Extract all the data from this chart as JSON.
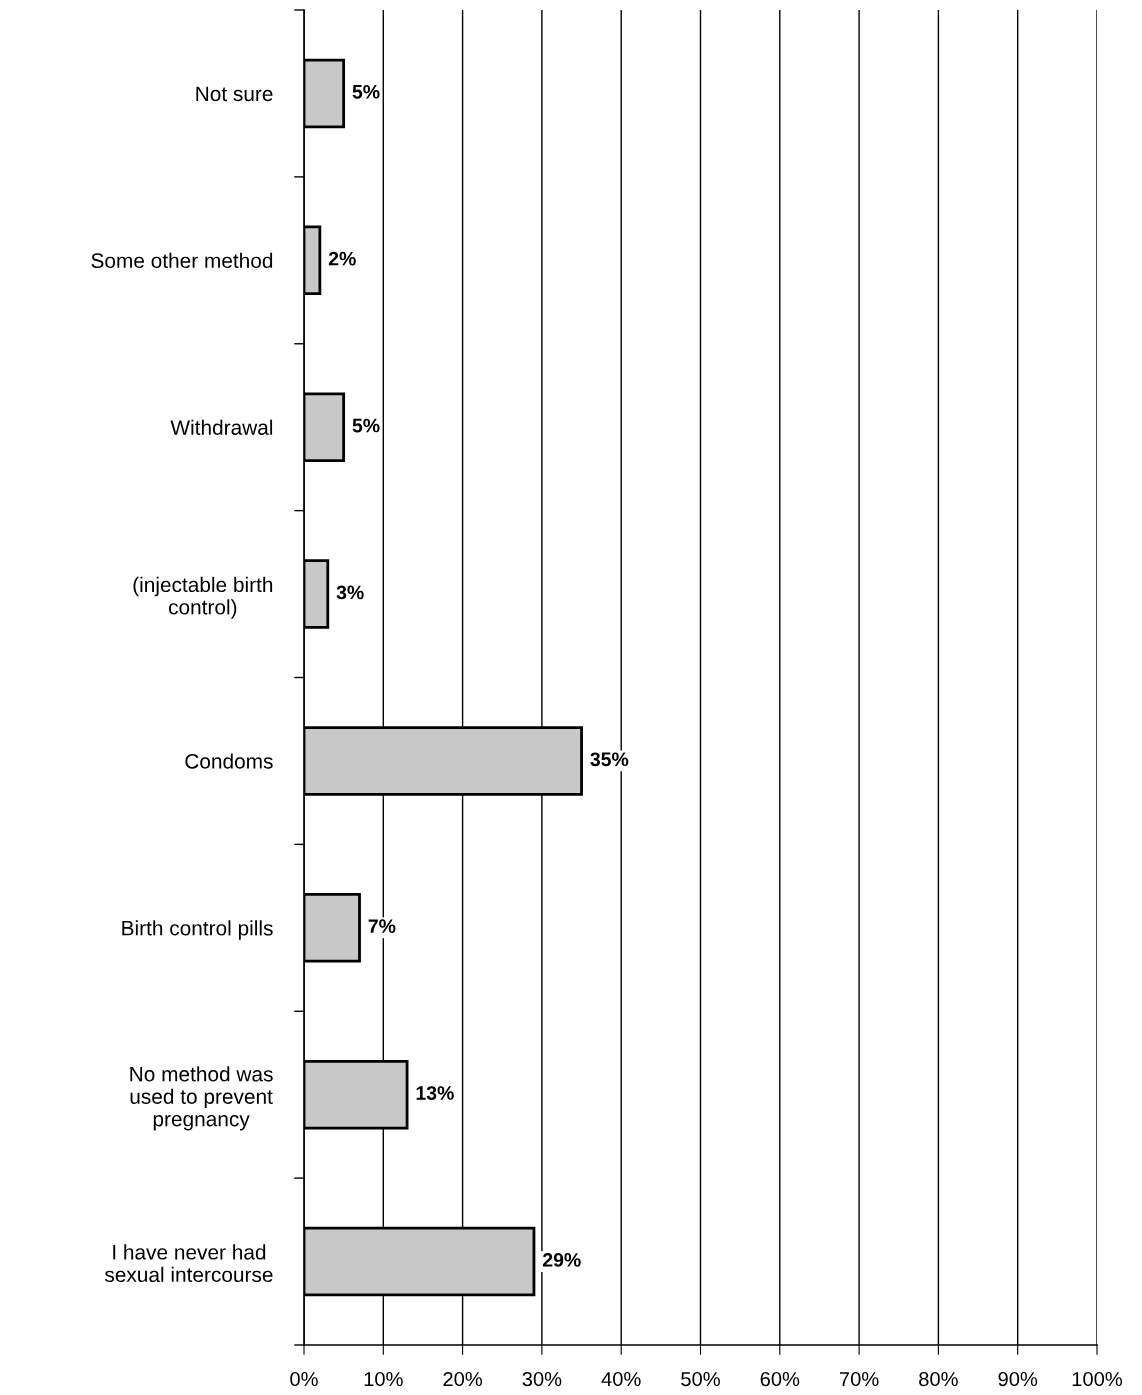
{
  "chart_data": {
    "type": "bar",
    "orientation": "horizontal",
    "categories": [
      "Not sure",
      "Some other method",
      "Withdrawal",
      "(injectable birth\ncontrol)",
      "Condoms",
      "Birth control pills",
      "No method was\nused to prevent\npregnancy",
      "I have never had\nsexual intercourse"
    ],
    "values": [
      5,
      2,
      5,
      3,
      35,
      7,
      13,
      29
    ],
    "color": "#c8c8c8",
    "value_labels": [
      "5%",
      "2%",
      "5%",
      "3%",
      "35%",
      "7%",
      "13%",
      "29%"
    ],
    "xlim": [
      0,
      100
    ],
    "xticks": [
      {
        "value": 0,
        "label": "0%"
      },
      {
        "value": 10,
        "label": "10%"
      },
      {
        "value": 20,
        "label": "20%"
      },
      {
        "value": 30,
        "label": "30%"
      },
      {
        "value": 40,
        "label": "40%"
      },
      {
        "value": 50,
        "label": "50%"
      },
      {
        "value": 60,
        "label": "60%"
      },
      {
        "value": 70,
        "label": "70%"
      },
      {
        "value": 80,
        "label": "80%"
      },
      {
        "value": 90,
        "label": "90%"
      },
      {
        "value": 100,
        "label": "100%"
      }
    ],
    "grid": "x",
    "legend": false
  }
}
